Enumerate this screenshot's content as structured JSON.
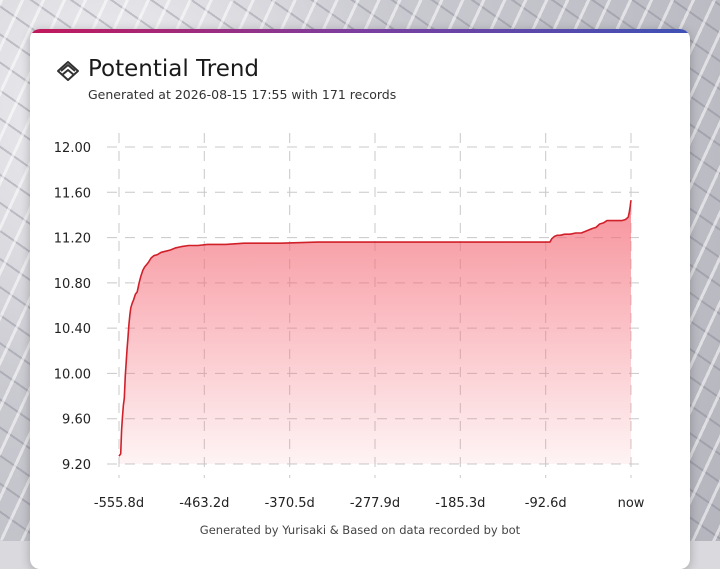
{
  "header": {
    "title": "Potential Trend",
    "subtitle": "Generated at 2026-08-15 17:55 with 171 records"
  },
  "footer": {
    "text": "Generated by Yurisaki & Based on data recorded by bot"
  },
  "colors": {
    "line": "#d0202a",
    "fill": "#f46e7a",
    "accent_start": "#c2185b",
    "accent_end": "#3f51b5"
  },
  "icons": {
    "logo": "chevron-stack-icon"
  },
  "chart_data": {
    "type": "area",
    "title": "Potential Trend",
    "xlabel": "",
    "ylabel": "",
    "xlim": [
      -555.8,
      0
    ],
    "ylim": [
      9.2,
      12.0
    ],
    "x_ticks": [
      -555.8,
      -463.2,
      -370.5,
      -277.9,
      -185.3,
      -92.6,
      0
    ],
    "x_tick_labels": [
      "-555.8d",
      "-463.2d",
      "-370.5d",
      "-277.9d",
      "-185.3d",
      "-92.6d",
      "now"
    ],
    "y_ticks": [
      9.2,
      9.6,
      10.0,
      10.4,
      10.8,
      11.2,
      11.6,
      12.0
    ],
    "y_tick_labels": [
      "9.20",
      "9.60",
      "10.00",
      "10.40",
      "10.80",
      "11.20",
      "11.60",
      "12.00"
    ],
    "grid": true,
    "legend": "none",
    "series": [
      {
        "x": [
          -555.8,
          -554.0,
          -553.0,
          -552.0,
          -551.0,
          -550.0,
          -549.0,
          -548.0,
          -547.0,
          -546.0,
          -545.0,
          -544.0,
          -543.0,
          -541.5,
          -540.0,
          -538.0,
          -536.0,
          -534.0,
          -532.0,
          -530.0,
          -528.0,
          -526.0,
          -524.0,
          -521.0,
          -518.0,
          -514.0,
          -510.0,
          -505.0,
          -500.0,
          -494.0,
          -488.0,
          -480.0,
          -470.0,
          -460.0,
          -440.0,
          -420.0,
          -400.0,
          -380.0,
          -340.0,
          -300.0,
          -250.0,
          -200.0,
          -150.0,
          -120.0,
          -100.0,
          -88.0,
          -86.0,
          -83.0,
          -80.0,
          -77.0,
          -72.0,
          -66.0,
          -60.0,
          -54.0,
          -48.0,
          -42.0,
          -38.0,
          -34.0,
          -30.0,
          -26.0,
          -22.0,
          -18.0,
          -14.0,
          -10.0,
          -6.0,
          -3.0,
          -2.0,
          -1.0,
          0.0
        ],
        "y": [
          9.27,
          9.29,
          9.5,
          9.62,
          9.72,
          9.78,
          9.98,
          10.1,
          10.22,
          10.32,
          10.43,
          10.52,
          10.58,
          10.62,
          10.65,
          10.7,
          10.72,
          10.8,
          10.86,
          10.91,
          10.94,
          10.96,
          10.98,
          11.02,
          11.04,
          11.05,
          11.07,
          11.08,
          11.09,
          11.11,
          11.12,
          11.13,
          11.13,
          11.14,
          11.14,
          11.15,
          11.15,
          11.15,
          11.16,
          11.16,
          11.16,
          11.16,
          11.16,
          11.16,
          11.16,
          11.16,
          11.19,
          11.21,
          11.22,
          11.22,
          11.23,
          11.23,
          11.24,
          11.24,
          11.26,
          11.28,
          11.29,
          11.32,
          11.33,
          11.35,
          11.35,
          11.35,
          11.35,
          11.35,
          11.36,
          11.38,
          11.42,
          11.47,
          11.53
        ]
      }
    ]
  }
}
